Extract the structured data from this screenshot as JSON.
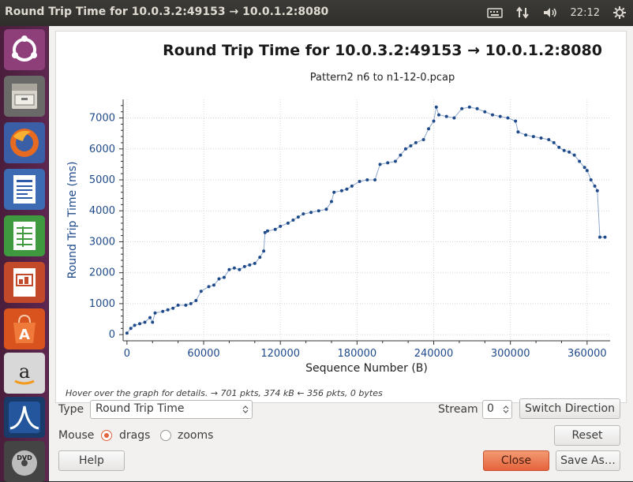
{
  "topbar": {
    "title": "Round Trip Time for 10.0.3.2:49153 → 10.0.1.2:8080",
    "clock": "22:12",
    "icons": [
      "keyboard-icon",
      "network-icon",
      "volume-icon",
      "gear-icon"
    ]
  },
  "launcher": {
    "items": [
      "ubuntu-dash-icon",
      "files-icon",
      "firefox-icon",
      "writer-icon",
      "calc-icon",
      "impress-icon",
      "software-center-icon",
      "amazon-icon",
      "wireshark-icon",
      "dvd-icon"
    ]
  },
  "chart_data": {
    "type": "scatter",
    "title": "Round Trip Time for 10.0.3.2:49153 → 10.0.1.2:8080",
    "subtitle": "Pattern2 n6 to n1-12-0.pcap",
    "xlabel": "Sequence Number (B)",
    "ylabel": "Round Trip Time (ms)",
    "xlim": [
      -3000,
      378000
    ],
    "ylim": [
      -200,
      7600
    ],
    "xticks": [
      0,
      60000,
      120000,
      180000,
      240000,
      300000,
      360000
    ],
    "yticks": [
      0,
      1000,
      2000,
      3000,
      4000,
      5000,
      6000,
      7000
    ],
    "grid": true,
    "color": "#1f4a8a",
    "points": [
      [
        0,
        50
      ],
      [
        3000,
        200
      ],
      [
        6000,
        300
      ],
      [
        10000,
        350
      ],
      [
        14000,
        400
      ],
      [
        18000,
        550
      ],
      [
        20000,
        400
      ],
      [
        22000,
        700
      ],
      [
        28000,
        750
      ],
      [
        32000,
        800
      ],
      [
        36000,
        850
      ],
      [
        40000,
        950
      ],
      [
        46000,
        950
      ],
      [
        50000,
        1000
      ],
      [
        54000,
        1100
      ],
      [
        58000,
        1400
      ],
      [
        64000,
        1550
      ],
      [
        68000,
        1600
      ],
      [
        72000,
        1800
      ],
      [
        76000,
        1850
      ],
      [
        80000,
        2100
      ],
      [
        84000,
        2150
      ],
      [
        88000,
        2100
      ],
      [
        92000,
        2200
      ],
      [
        96000,
        2250
      ],
      [
        100000,
        2300
      ],
      [
        104000,
        2500
      ],
      [
        107000,
        2700
      ],
      [
        108000,
        3300
      ],
      [
        110000,
        3350
      ],
      [
        116000,
        3400
      ],
      [
        120000,
        3500
      ],
      [
        126000,
        3600
      ],
      [
        130000,
        3700
      ],
      [
        134000,
        3800
      ],
      [
        138000,
        3900
      ],
      [
        144000,
        3950
      ],
      [
        150000,
        4000
      ],
      [
        156000,
        4050
      ],
      [
        160000,
        4300
      ],
      [
        162000,
        4600
      ],
      [
        168000,
        4650
      ],
      [
        172000,
        4700
      ],
      [
        176000,
        4800
      ],
      [
        182000,
        4950
      ],
      [
        188000,
        5000
      ],
      [
        194000,
        5000
      ],
      [
        198000,
        5500
      ],
      [
        204000,
        5550
      ],
      [
        210000,
        5600
      ],
      [
        214000,
        5800
      ],
      [
        218000,
        6000
      ],
      [
        222000,
        6100
      ],
      [
        226000,
        6200
      ],
      [
        232000,
        6300
      ],
      [
        236000,
        6650
      ],
      [
        240000,
        6900
      ],
      [
        242000,
        7350
      ],
      [
        244000,
        7100
      ],
      [
        250000,
        7050
      ],
      [
        256000,
        7000
      ],
      [
        262000,
        7300
      ],
      [
        268000,
        7350
      ],
      [
        274000,
        7300
      ],
      [
        280000,
        7200
      ],
      [
        286000,
        7100
      ],
      [
        292000,
        7050
      ],
      [
        298000,
        7000
      ],
      [
        304000,
        6900
      ],
      [
        306000,
        6550
      ],
      [
        312000,
        6450
      ],
      [
        318000,
        6400
      ],
      [
        324000,
        6350
      ],
      [
        330000,
        6300
      ],
      [
        334000,
        6200
      ],
      [
        338000,
        6050
      ],
      [
        342000,
        5950
      ],
      [
        346000,
        5900
      ],
      [
        350000,
        5800
      ],
      [
        354000,
        5600
      ],
      [
        358000,
        5400
      ],
      [
        360000,
        5300
      ],
      [
        363000,
        5000
      ],
      [
        366000,
        4800
      ],
      [
        368000,
        4650
      ],
      [
        370000,
        3150
      ],
      [
        374000,
        3150
      ]
    ]
  },
  "status": {
    "hint": "Hover over the graph for details. → 701 pkts, 374 kB ← 356 pkts, 0 bytes"
  },
  "controls": {
    "type_label": "Type",
    "type_value": "Round Trip Time",
    "stream_label": "Stream",
    "stream_value": "0",
    "switch_direction": "Switch Direction",
    "mouse_label": "Mouse",
    "drags_label": "drags",
    "zooms_label": "zooms",
    "reset": "Reset",
    "help": "Help",
    "close": "Close",
    "save_as": "Save As…"
  }
}
